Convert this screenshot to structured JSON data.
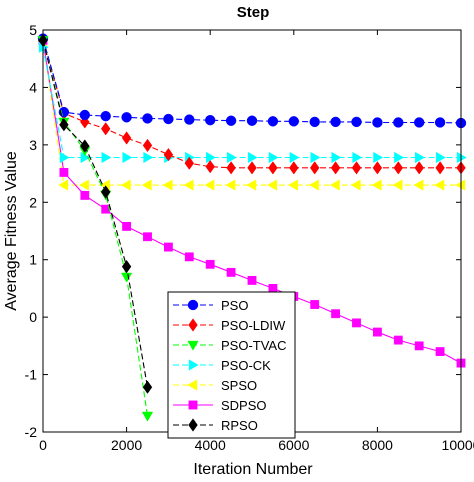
{
  "chart_data": {
    "type": "line",
    "title": "Step",
    "xlabel": "Iteration Number",
    "ylabel": "Average Fitness Value",
    "xlim": [
      0,
      10000
    ],
    "ylim": [
      -2,
      5
    ],
    "xticks": [
      0,
      2000,
      4000,
      6000,
      8000,
      10000
    ],
    "yticks": [
      -2,
      -1,
      0,
      1,
      2,
      3,
      4,
      5
    ],
    "xtick_labels": [
      "0",
      "2000",
      "4000",
      "6000",
      "8000",
      "10000"
    ],
    "ytick_labels": [
      "-2",
      "-1",
      "0",
      "1",
      "2",
      "3",
      "4",
      "5"
    ],
    "grid": false,
    "legend_position": "bottom-center",
    "series": [
      {
        "name": "PSO",
        "color": "#0000ff",
        "marker": "circle",
        "dash": "6,3",
        "x": [
          0,
          500,
          1000,
          1500,
          2000,
          2500,
          3000,
          3500,
          4000,
          4500,
          5000,
          5500,
          6000,
          6500,
          7000,
          7500,
          8000,
          8500,
          9000,
          9500,
          10000
        ],
        "y": [
          4.85,
          3.57,
          3.52,
          3.5,
          3.48,
          3.46,
          3.45,
          3.44,
          3.43,
          3.42,
          3.42,
          3.41,
          3.41,
          3.4,
          3.4,
          3.4,
          3.39,
          3.39,
          3.39,
          3.39,
          3.38
        ]
      },
      {
        "name": "PSO-LDIW",
        "color": "#ff0000",
        "marker": "diamond",
        "dash": "6,3",
        "x": [
          0,
          500,
          1000,
          1500,
          2000,
          2500,
          3000,
          3500,
          4000,
          4500,
          5000,
          5500,
          6000,
          6500,
          7000,
          7500,
          8000,
          8500,
          9000,
          9500,
          10000
        ],
        "y": [
          4.82,
          3.55,
          3.4,
          3.28,
          3.12,
          2.99,
          2.83,
          2.68,
          2.62,
          2.6,
          2.6,
          2.6,
          2.6,
          2.6,
          2.6,
          2.6,
          2.6,
          2.6,
          2.6,
          2.6,
          2.6
        ]
      },
      {
        "name": "PSO-TVAC",
        "color": "#00ff00",
        "marker": "triangle-down",
        "dash": "6,3",
        "x": [
          0,
          500,
          1000,
          1500,
          2000,
          2500
        ],
        "y": [
          4.82,
          3.4,
          2.9,
          2.13,
          0.7,
          -1.72
        ]
      },
      {
        "name": "PSO-CK",
        "color": "#00ffff",
        "marker": "triangle-right",
        "dash": "6,3",
        "x": [
          0,
          500,
          1000,
          1500,
          2000,
          2500,
          3000,
          3500,
          4000,
          4500,
          5000,
          5500,
          6000,
          6500,
          7000,
          7500,
          8000,
          8500,
          9000,
          9500,
          10000
        ],
        "y": [
          4.7,
          2.78,
          2.78,
          2.78,
          2.78,
          2.78,
          2.78,
          2.78,
          2.78,
          2.78,
          2.78,
          2.78,
          2.78,
          2.78,
          2.78,
          2.78,
          2.78,
          2.78,
          2.78,
          2.78,
          2.78
        ]
      },
      {
        "name": "SPSO",
        "color": "#ffff00",
        "marker": "triangle-left",
        "dash": "6,3",
        "x": [
          0,
          500,
          1000,
          1500,
          2000,
          2500,
          3000,
          3500,
          4000,
          4500,
          5000,
          5500,
          6000,
          6500,
          7000,
          7500,
          8000,
          8500,
          9000,
          9500,
          10000
        ],
        "y": [
          4.8,
          2.3,
          2.3,
          2.3,
          2.3,
          2.3,
          2.3,
          2.3,
          2.3,
          2.3,
          2.3,
          2.3,
          2.3,
          2.3,
          2.3,
          2.3,
          2.3,
          2.3,
          2.3,
          2.3,
          2.3
        ]
      },
      {
        "name": "SDPSO",
        "color": "#ff00ff",
        "marker": "square",
        "dash": "",
        "x": [
          0,
          500,
          1000,
          1500,
          2000,
          2500,
          3000,
          3500,
          4000,
          4500,
          5000,
          5500,
          6000,
          6500,
          7000,
          7500,
          8000,
          8500,
          9000,
          9500,
          10000
        ],
        "y": [
          4.82,
          2.52,
          2.12,
          1.88,
          1.58,
          1.4,
          1.22,
          1.05,
          0.92,
          0.78,
          0.64,
          0.5,
          0.36,
          0.22,
          0.06,
          -0.1,
          -0.26,
          -0.4,
          -0.5,
          -0.6,
          -0.8
        ]
      },
      {
        "name": "RPSO",
        "color": "#000000",
        "marker": "diamond",
        "dash": "6,3",
        "x": [
          0,
          500,
          1000,
          1500,
          2000,
          2500
        ],
        "y": [
          4.82,
          3.35,
          2.98,
          2.18,
          0.88,
          -1.22
        ]
      }
    ]
  }
}
